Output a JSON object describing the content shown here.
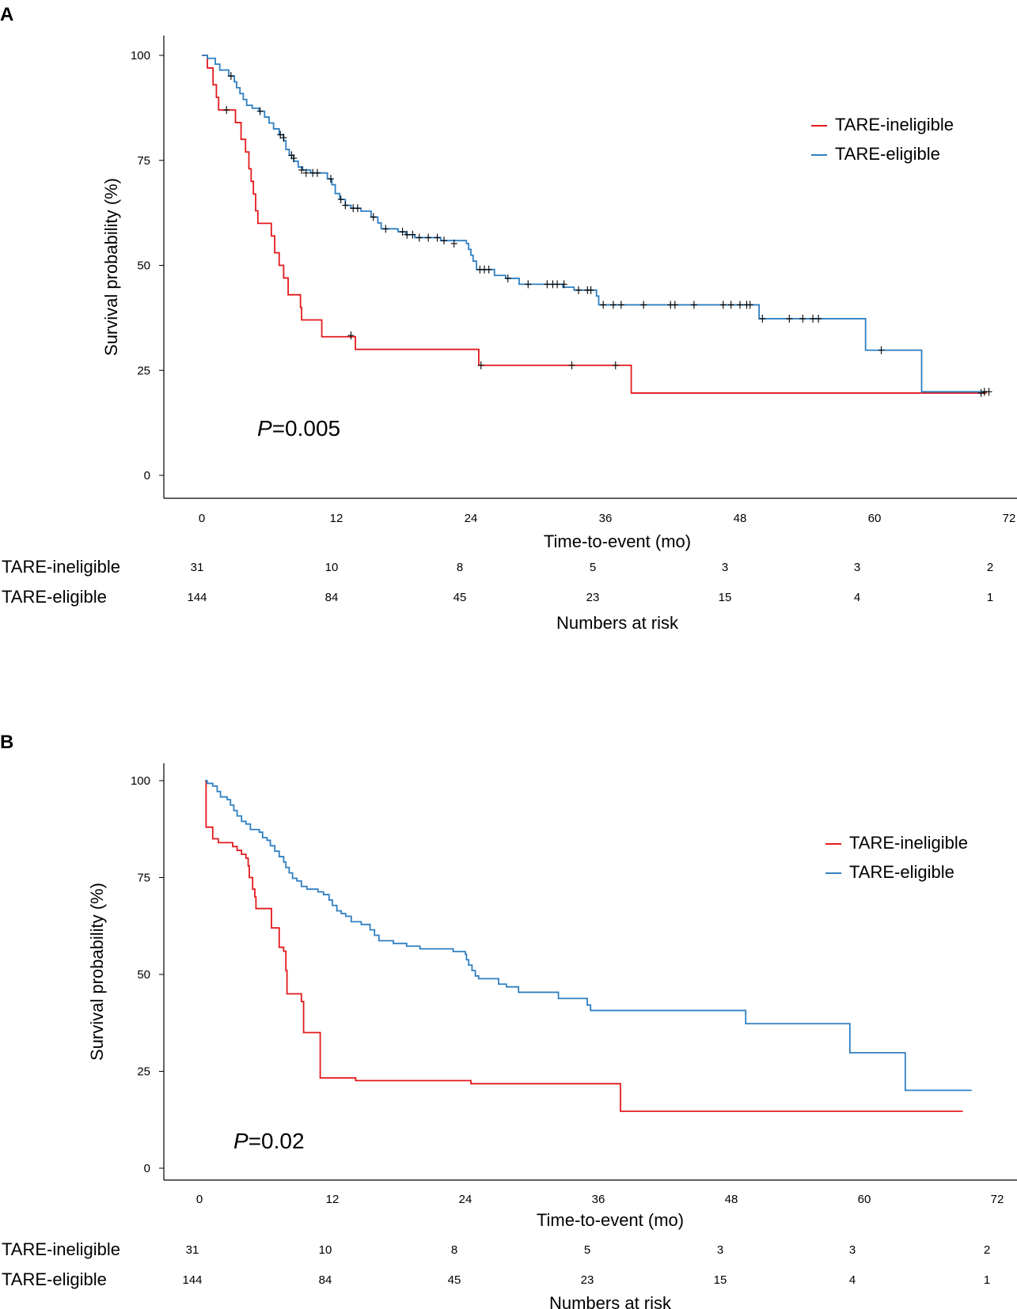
{
  "colors": {
    "ineligible": "#e31a1c",
    "eligible": "#2f7fc1",
    "axis": "#000000",
    "censor": "#000000"
  },
  "chart_data": [
    {
      "type": "line",
      "panel_label": "A",
      "xlabel": "Time-to-event (mo)",
      "ylabel": "Survival probability (%)",
      "xlim": [
        -3,
        77
      ],
      "ylim": [
        -5,
        105
      ],
      "xticks": [
        "0",
        "12",
        "24",
        "36",
        "48",
        "60",
        "72"
      ],
      "yticks": [
        "0",
        "25",
        "50",
        "75",
        "100"
      ],
      "p_prefix": "P",
      "p_value": "=0.005",
      "legend": [
        "TARE-ineligible",
        "TARE-eligible"
      ],
      "series": [
        {
          "name": "TARE-ineligible",
          "color_key": "ineligible",
          "steps": [
            [
              0,
              100
            ],
            [
              0.5,
              97
            ],
            [
              1.0,
              93
            ],
            [
              1.3,
              90
            ],
            [
              1.5,
              87
            ],
            [
              2.5,
              87
            ],
            [
              3.0,
              84
            ],
            [
              3.5,
              80
            ],
            [
              3.9,
              77
            ],
            [
              4.2,
              73
            ],
            [
              4.4,
              70
            ],
            [
              4.6,
              67
            ],
            [
              4.8,
              63
            ],
            [
              5.0,
              60
            ],
            [
              6.0,
              60
            ],
            [
              6.2,
              57
            ],
            [
              6.5,
              53
            ],
            [
              6.9,
              50
            ],
            [
              7.3,
              47
            ],
            [
              7.7,
              43
            ],
            [
              8.7,
              43
            ],
            [
              8.8,
              40
            ],
            [
              8.9,
              37
            ],
            [
              10.5,
              37
            ],
            [
              10.7,
              33
            ],
            [
              13.6,
              33
            ],
            [
              13.7,
              30
            ],
            [
              24.6,
              30
            ],
            [
              24.7,
              26.2
            ],
            [
              38.2,
              26.2
            ],
            [
              38.3,
              19.6
            ],
            [
              70,
              19.6
            ]
          ],
          "censors": [
            [
              2.2,
              87
            ],
            [
              13.3,
              33.3
            ],
            [
              24.9,
              26.2
            ],
            [
              33.0,
              26.2
            ],
            [
              36.9,
              26.2
            ],
            [
              69.5,
              19.6
            ]
          ]
        },
        {
          "name": "TARE-eligible",
          "color_key": "eligible",
          "steps": [
            [
              0,
              100
            ],
            [
              0.5,
              99.3
            ],
            [
              1.2,
              97.9
            ],
            [
              1.6,
              96.5
            ],
            [
              2.4,
              95.1
            ],
            [
              2.9,
              93.7
            ],
            [
              3.1,
              92.3
            ],
            [
              3.4,
              90.9
            ],
            [
              3.7,
              89.5
            ],
            [
              4.0,
              88.1
            ],
            [
              4.5,
              87.4
            ],
            [
              5.1,
              86.7
            ],
            [
              5.6,
              85.3
            ],
            [
              6.0,
              83.9
            ],
            [
              6.4,
              82.5
            ],
            [
              6.9,
              81.1
            ],
            [
              7.3,
              79.7
            ],
            [
              7.5,
              77.6
            ],
            [
              7.8,
              76.2
            ],
            [
              8.2,
              74.8
            ],
            [
              8.6,
              73.4
            ],
            [
              9.0,
              72.7
            ],
            [
              9.7,
              72.0
            ],
            [
              11.2,
              70.6
            ],
            [
              11.6,
              69.2
            ],
            [
              11.9,
              67.1
            ],
            [
              12.3,
              65.7
            ],
            [
              12.8,
              64.3
            ],
            [
              13.3,
              63.6
            ],
            [
              14.2,
              62.9
            ],
            [
              15.1,
              61.5
            ],
            [
              15.7,
              60.1
            ],
            [
              16.0,
              58.7
            ],
            [
              17.5,
              58.0
            ],
            [
              18.2,
              57.3
            ],
            [
              19.0,
              56.6
            ],
            [
              21.0,
              56.6
            ],
            [
              21.3,
              55.9
            ],
            [
              23.6,
              55.2
            ],
            [
              23.8,
              53.8
            ],
            [
              24.0,
              52.4
            ],
            [
              24.2,
              51.0
            ],
            [
              24.5,
              49.0
            ],
            [
              26.1,
              47.6
            ],
            [
              27.1,
              46.9
            ],
            [
              28.3,
              45.5
            ],
            [
              32.2,
              44.8
            ],
            [
              33.2,
              44.1
            ],
            [
              35.2,
              42.7
            ],
            [
              35.4,
              40.6
            ],
            [
              49.6,
              40.6
            ],
            [
              49.7,
              37.3
            ],
            [
              59.1,
              37.3
            ],
            [
              59.2,
              29.8
            ],
            [
              64.1,
              29.8
            ],
            [
              64.2,
              19.9
            ],
            [
              70,
              19.9
            ]
          ],
          "censors": [
            [
              2.6,
              95.1
            ],
            [
              5.2,
              86.7
            ],
            [
              7.0,
              81.1
            ],
            [
              7.3,
              80.4
            ],
            [
              8.0,
              76.2
            ],
            [
              8.2,
              75.5
            ],
            [
              8.9,
              72.7
            ],
            [
              9.3,
              72.0
            ],
            [
              9.9,
              72.0
            ],
            [
              10.3,
              72.0
            ],
            [
              11.5,
              70.6
            ],
            [
              12.4,
              65.7
            ],
            [
              12.8,
              64.3
            ],
            [
              13.5,
              63.6
            ],
            [
              13.9,
              63.6
            ],
            [
              15.3,
              61.5
            ],
            [
              16.4,
              58.7
            ],
            [
              17.9,
              58.0
            ],
            [
              18.3,
              57.3
            ],
            [
              18.8,
              57.3
            ],
            [
              19.4,
              56.6
            ],
            [
              20.2,
              56.6
            ],
            [
              21.0,
              56.6
            ],
            [
              21.6,
              55.9
            ],
            [
              22.5,
              55.2
            ],
            [
              24.8,
              49.0
            ],
            [
              25.2,
              49.0
            ],
            [
              25.6,
              49.0
            ],
            [
              27.3,
              46.9
            ],
            [
              29.1,
              45.5
            ],
            [
              30.8,
              45.5
            ],
            [
              31.3,
              45.5
            ],
            [
              31.7,
              45.5
            ],
            [
              32.3,
              45.5
            ],
            [
              33.6,
              44.1
            ],
            [
              34.4,
              44.1
            ],
            [
              34.7,
              44.1
            ],
            [
              35.8,
              40.6
            ],
            [
              36.7,
              40.6
            ],
            [
              37.4,
              40.6
            ],
            [
              39.4,
              40.6
            ],
            [
              41.8,
              40.6
            ],
            [
              42.2,
              40.6
            ],
            [
              43.9,
              40.6
            ],
            [
              46.5,
              40.6
            ],
            [
              47.2,
              40.6
            ],
            [
              48.0,
              40.6
            ],
            [
              48.6,
              40.6
            ],
            [
              48.9,
              40.6
            ],
            [
              50.0,
              37.3
            ],
            [
              52.4,
              37.3
            ],
            [
              53.6,
              37.3
            ],
            [
              54.5,
              37.3
            ],
            [
              55.0,
              37.3
            ],
            [
              60.6,
              29.8
            ],
            [
              69.8,
              19.9
            ],
            [
              70.2,
              19.9
            ]
          ]
        }
      ],
      "risk_table": {
        "title": "Numbers at risk",
        "rows": [
          {
            "label": "TARE-ineligible",
            "values": [
              "31",
              "10",
              "8",
              "5",
              "3",
              "3",
              "2"
            ]
          },
          {
            "label": "TARE-eligible",
            "values": [
              "144",
              "84",
              "45",
              "23",
              "15",
              "4",
              "1"
            ]
          }
        ]
      }
    },
    {
      "type": "line",
      "panel_label": "B",
      "xlabel": "Time-to-event (mo)",
      "ylabel": "Survival probability (%)",
      "xlim": [
        -3,
        76
      ],
      "ylim": [
        -5,
        105
      ],
      "xticks": [
        "0",
        "12",
        "24",
        "36",
        "48",
        "60",
        "72"
      ],
      "yticks": [
        "0",
        "25",
        "50",
        "75",
        "100"
      ],
      "p_prefix": "P",
      "p_value": "=0.02",
      "legend": [
        "TARE-ineligible",
        "TARE-eligible"
      ],
      "series": [
        {
          "name": "TARE-ineligible",
          "color_key": "ineligible",
          "steps": [
            [
              0.5,
              100
            ],
            [
              0.6,
              88
            ],
            [
              1.2,
              85
            ],
            [
              1.7,
              84
            ],
            [
              3.0,
              83
            ],
            [
              3.4,
              82
            ],
            [
              3.8,
              81
            ],
            [
              4.2,
              80
            ],
            [
              4.4,
              78
            ],
            [
              4.5,
              75
            ],
            [
              4.8,
              72
            ],
            [
              5.0,
              70
            ],
            [
              5.1,
              67
            ],
            [
              6.4,
              67
            ],
            [
              6.5,
              62
            ],
            [
              7.0,
              62
            ],
            [
              7.2,
              57
            ],
            [
              7.6,
              56
            ],
            [
              7.8,
              51
            ],
            [
              7.9,
              45
            ],
            [
              9.0,
              45
            ],
            [
              9.2,
              43
            ],
            [
              9.4,
              35
            ],
            [
              10.8,
              35
            ],
            [
              10.9,
              23.3
            ],
            [
              14.0,
              23.3
            ],
            [
              14.1,
              22.6
            ],
            [
              24.4,
              22.6
            ],
            [
              24.5,
              21.8
            ],
            [
              37.9,
              21.8
            ],
            [
              38.0,
              14.7
            ],
            [
              68.9,
              14.7
            ]
          ]
        },
        {
          "name": "TARE-eligible",
          "color_key": "eligible",
          "steps": [
            [
              0.5,
              100
            ],
            [
              0.7,
              99.3
            ],
            [
              1.2,
              98.6
            ],
            [
              1.6,
              97.2
            ],
            [
              1.9,
              95.8
            ],
            [
              2.5,
              95.1
            ],
            [
              2.8,
              93.7
            ],
            [
              3.1,
              92.3
            ],
            [
              3.4,
              90.9
            ],
            [
              3.8,
              89.5
            ],
            [
              4.2,
              88.8
            ],
            [
              4.6,
              87.4
            ],
            [
              5.4,
              86.7
            ],
            [
              5.7,
              85.3
            ],
            [
              6.1,
              84.6
            ],
            [
              6.4,
              83.2
            ],
            [
              6.8,
              81.8
            ],
            [
              7.2,
              80.4
            ],
            [
              7.6,
              79.0
            ],
            [
              7.8,
              77.6
            ],
            [
              8.1,
              76.2
            ],
            [
              8.4,
              74.8
            ],
            [
              8.8,
              74.1
            ],
            [
              9.2,
              72.7
            ],
            [
              9.7,
              72.0
            ],
            [
              10.7,
              71.3
            ],
            [
              11.2,
              70.6
            ],
            [
              11.7,
              69.2
            ],
            [
              12.0,
              67.8
            ],
            [
              12.4,
              66.4
            ],
            [
              12.8,
              65.7
            ],
            [
              13.2,
              65.0
            ],
            [
              13.7,
              63.6
            ],
            [
              14.6,
              62.9
            ],
            [
              15.4,
              61.5
            ],
            [
              15.8,
              60.1
            ],
            [
              16.2,
              58.7
            ],
            [
              17.5,
              58.0
            ],
            [
              18.7,
              57.3
            ],
            [
              19.9,
              56.6
            ],
            [
              22.9,
              55.9
            ],
            [
              24.0,
              55.2
            ],
            [
              24.1,
              53.8
            ],
            [
              24.3,
              52.4
            ],
            [
              24.6,
              51.0
            ],
            [
              24.9,
              49.6
            ],
            [
              25.2,
              48.9
            ],
            [
              27.0,
              47.5
            ],
            [
              27.7,
              46.8
            ],
            [
              28.8,
              45.4
            ],
            [
              32.4,
              43.8
            ],
            [
              35.0,
              42.1
            ],
            [
              35.3,
              40.7
            ],
            [
              49.2,
              40.7
            ],
            [
              49.3,
              37.3
            ],
            [
              58.6,
              37.3
            ],
            [
              58.7,
              29.8
            ],
            [
              63.6,
              29.8
            ],
            [
              63.7,
              20.1
            ],
            [
              69.7,
              20.1
            ]
          ]
        }
      ],
      "risk_table": {
        "title": "Numbers at risk",
        "rows": [
          {
            "label": "TARE-ineligible",
            "values": [
              "31",
              "10",
              "8",
              "5",
              "3",
              "3",
              "2"
            ]
          },
          {
            "label": "TARE-eligible",
            "values": [
              "144",
              "84",
              "45",
              "23",
              "15",
              "4",
              "1"
            ]
          }
        ]
      }
    }
  ]
}
